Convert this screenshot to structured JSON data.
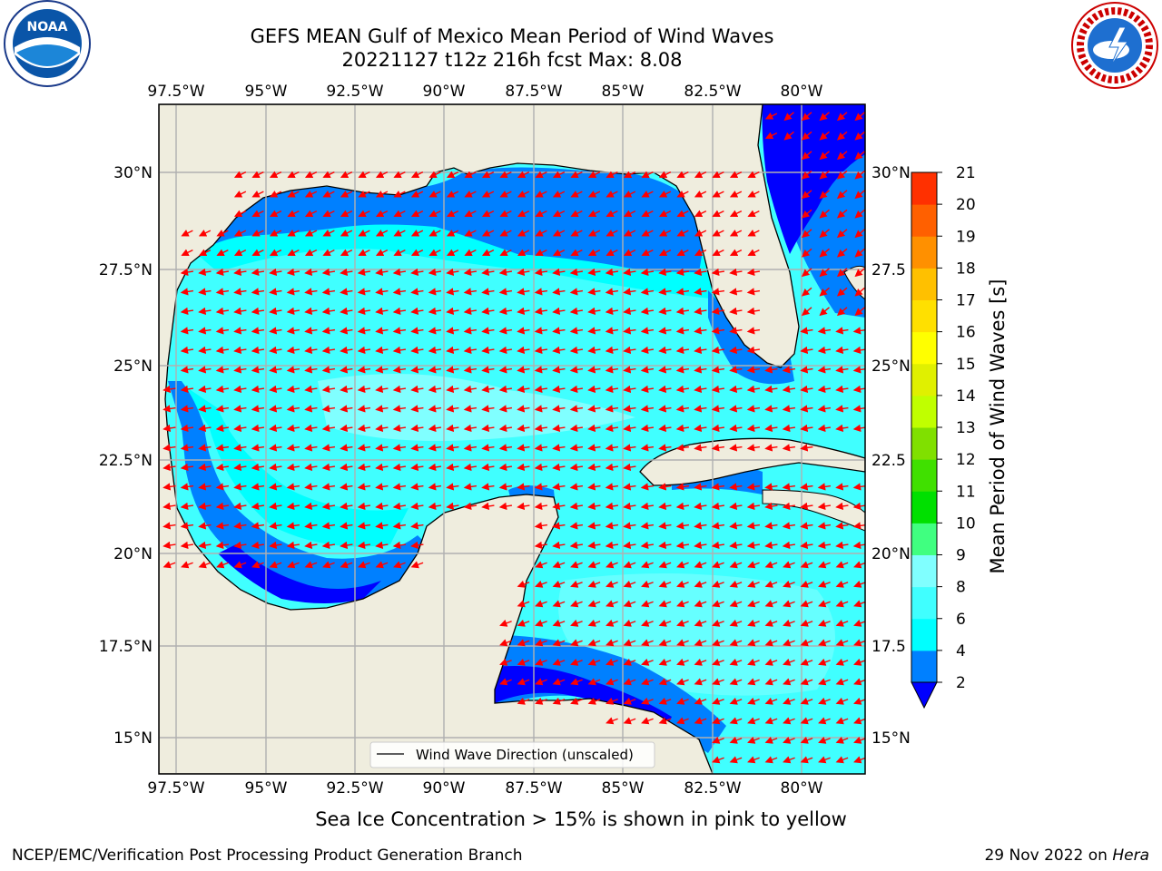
{
  "header": {
    "title_line1": "GEFS MEAN Gulf of Mexico Mean Period of Wind Waves",
    "title_line2": "20221127 t12z 216h fcst   Max: 8.08"
  },
  "map": {
    "lon_labels": [
      "97.5°W",
      "95°W",
      "92.5°W",
      "90°W",
      "87.5°W",
      "85°W",
      "82.5°W",
      "80°W"
    ],
    "lat_labels_left": [
      "30°N",
      "27.5°N",
      "25°N",
      "22.5°N",
      "20°N",
      "17.5°N",
      "15°N"
    ],
    "lat_labels_right": [
      "30°N",
      "27.5",
      "25°N",
      "22.5",
      "20°N",
      "17.5",
      "15°N"
    ],
    "legend_label": "Wind Wave Direction (unscaled)",
    "colors": {
      "land": "#efedde",
      "band_2_4": "#0080ff",
      "band_below_2": "#0000ff",
      "band_4_6": "#00ffff",
      "band_6_8": "#40ffff",
      "arrow": "#ff0000"
    }
  },
  "colorbar": {
    "label": "Mean Period of Wind Waves [s]",
    "tick_labels": [
      "2",
      "4",
      "6",
      "8",
      "9",
      "10",
      "11",
      "12",
      "13",
      "14",
      "15",
      "16",
      "17",
      "18",
      "19",
      "20",
      "21"
    ],
    "colors": [
      "#0080ff",
      "#00ffff",
      "#40ffff",
      "#80ffff",
      "#40ff80",
      "#00e000",
      "#40e000",
      "#80e000",
      "#c0ff00",
      "#e0f000",
      "#ffff00",
      "#ffe000",
      "#ffc000",
      "#ff9000",
      "#ff6000",
      "#ff3000",
      "#ff0000"
    ],
    "under_color": "#0000ff"
  },
  "footer": {
    "seaice_note": "Sea Ice Concentration > 15% is shown in pink to yellow",
    "credit": "NCEP/EMC/Verification Post Processing Product Generation Branch",
    "date_prefix": "29 Nov 2022 on ",
    "host": "Hera"
  },
  "logos": {
    "noaa_text": "NOAA",
    "nws_text": "NATIONAL WEATHER SERVICE"
  }
}
